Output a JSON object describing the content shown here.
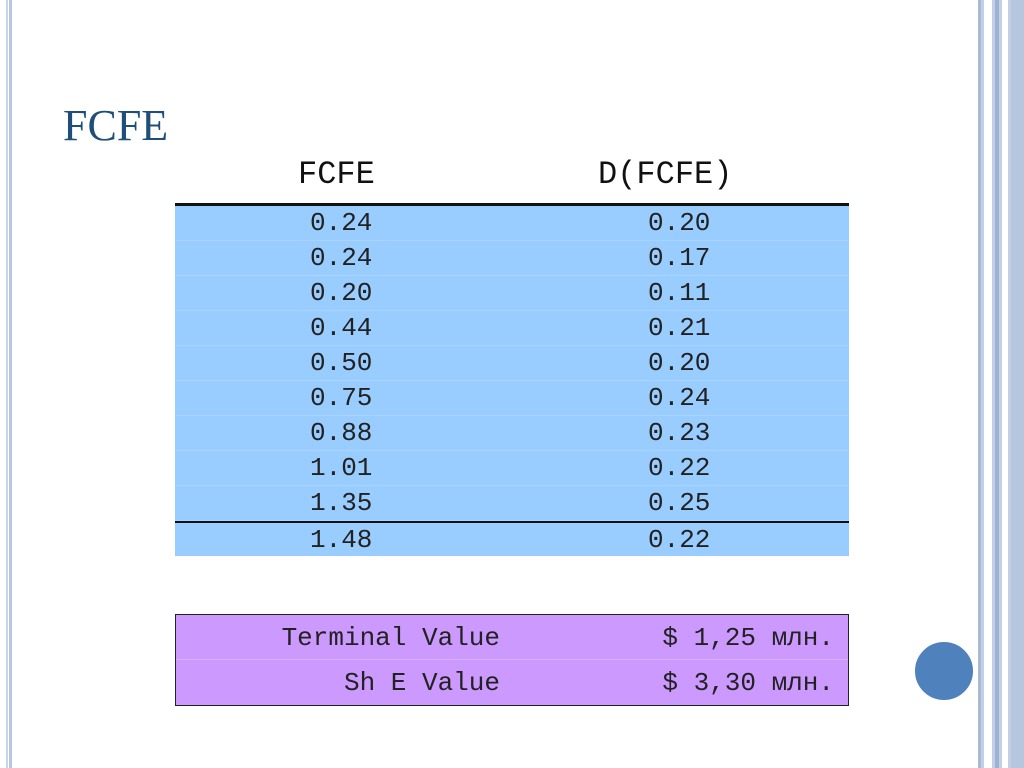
{
  "slide": {
    "title": "FCFE",
    "columns": [
      "FCFE",
      "D(FCFE)"
    ],
    "rows": [
      [
        "0.24",
        "0.20"
      ],
      [
        "0.24",
        "0.17"
      ],
      [
        "0.20",
        "0.11"
      ],
      [
        "0.44",
        "0.21"
      ],
      [
        "0.50",
        "0.20"
      ],
      [
        "0.75",
        "0.24"
      ],
      [
        "0.88",
        "0.23"
      ],
      [
        "1.01",
        "0.22"
      ],
      [
        "1.35",
        "0.25"
      ],
      [
        "1.48",
        "0.22"
      ]
    ],
    "summary": [
      {
        "label": "Terminal Value",
        "value": "$ 1,25 млн."
      },
      {
        "label": "Sh E Value",
        "value": "$ 3,30 млн."
      }
    ]
  },
  "colors": {
    "title": "#1f4e79",
    "table_fill": "#99ccff",
    "summary_fill": "#cc99ff",
    "accent_dot": "#4f81bd"
  }
}
